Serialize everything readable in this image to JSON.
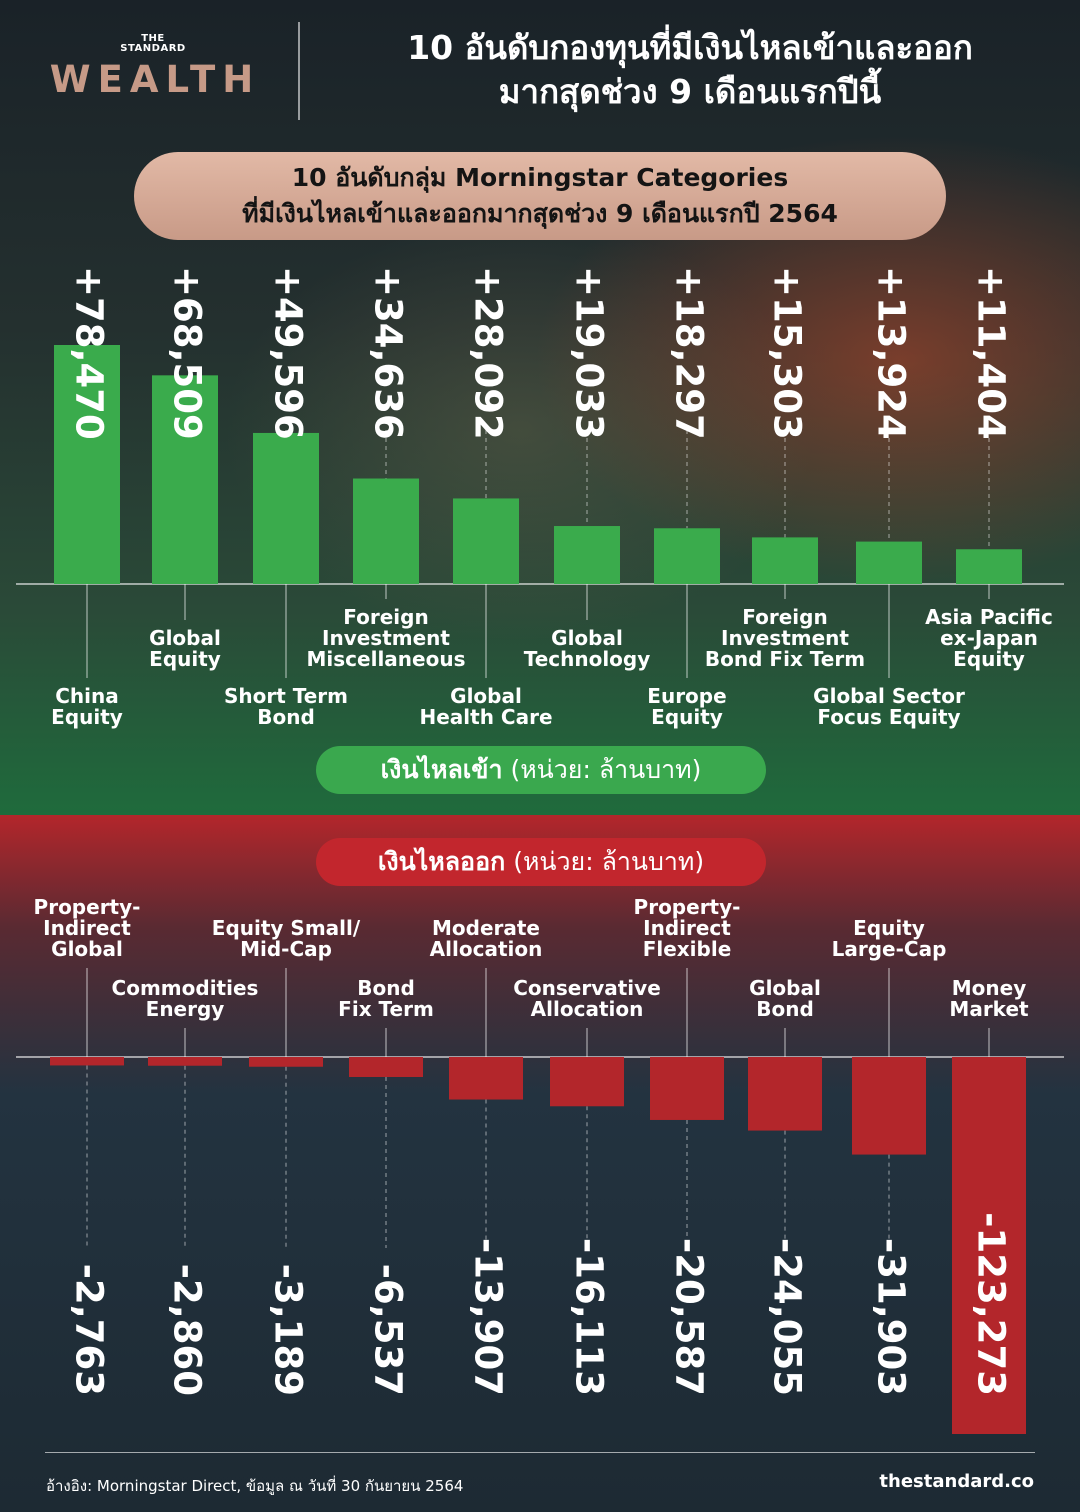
{
  "brand": {
    "small": "THE STANDARD",
    "big": "WEALTH"
  },
  "title": {
    "line1": "10 อันดับกองทุนที่มีเงินไหลเข้าและออก",
    "line2": "มากสุดช่วง 9 เดือนแรกปีนี้"
  },
  "subtitle": {
    "line1": "10 อันดับกลุ่ม Morningstar Categories",
    "line2": "ที่มีเงินไหลเข้าและออกมากสุดช่วง 9 เดือนแรกปี 2564"
  },
  "inflow_label": {
    "bold": "เงินไหลเข้า",
    "unit": "(หน่วย: ล้านบาท)"
  },
  "outflow_label": {
    "bold": "เงินไหลออก",
    "unit": "(หน่วย: ล้านบาท)"
  },
  "footer": {
    "source": "อ้างอิง: Morningstar Direct, ข้อมูล ณ วันที่ 30 กันยายน 2564",
    "site": "thestandard.co"
  },
  "colors": {
    "inflow_bar": "#3aab4c",
    "outflow_bar": "#b3262b",
    "banner": "#d6ab98",
    "brand": "#c69a87"
  },
  "chart_data": [
    {
      "type": "bar",
      "series": [
        {
          "name": "เงินไหลเข้า",
          "values": [
            78470,
            68509,
            49596,
            34636,
            28092,
            19033,
            18297,
            15303,
            13924,
            11404
          ]
        }
      ],
      "categories": [
        "China Equity",
        "Global Equity",
        "Short Term Bond",
        "Foreign Investment Miscellaneous",
        "Global Health Care",
        "Global Technology",
        "Europe Equity",
        "Foreign Investment Bond Fix Term",
        "Global Sector Focus Equity",
        "Asia Pacific ex-Japan Equity"
      ],
      "category_lines": [
        [
          "China",
          "Equity"
        ],
        [
          "Global",
          "Equity"
        ],
        [
          "Short Term",
          "Bond"
        ],
        [
          "Foreign",
          "Investment",
          "Miscellaneous"
        ],
        [
          "Global",
          "Health Care"
        ],
        [
          "Global",
          "Technology"
        ],
        [
          "Europe",
          "Equity"
        ],
        [
          "Foreign",
          "Investment",
          "Bond Fix Term"
        ],
        [
          "Global Sector",
          "Focus Equity"
        ],
        [
          "Asia Pacific",
          "ex-Japan",
          "Equity"
        ]
      ],
      "value_labels": [
        "+78,470",
        "+68,509",
        "+49,596",
        "+34,636",
        "+28,092",
        "+19,033",
        "+18,297",
        "+15,303",
        "+13,924",
        "+11,404"
      ],
      "ylabel": "(หน่วย: ล้านบาท)",
      "ylim": [
        0,
        78470
      ],
      "grid": false,
      "legend": "none"
    },
    {
      "type": "bar",
      "series": [
        {
          "name": "เงินไหลออก",
          "values": [
            -2763,
            -2860,
            -3189,
            -6537,
            -13907,
            -16113,
            -20587,
            -24055,
            -31903,
            -123273
          ]
        }
      ],
      "categories": [
        "Property-Indirect Global",
        "Commodities Energy",
        "Equity Small/Mid-Cap",
        "Bond Fix Term",
        "Moderate Allocation",
        "Conservative Allocation",
        "Property-Indirect Flexible",
        "Global Bond",
        "Equity Large-Cap",
        "Money Market"
      ],
      "category_lines": [
        [
          "Property-",
          "Indirect",
          "Global"
        ],
        [
          "Commodities",
          "Energy"
        ],
        [
          "Equity Small/",
          "Mid-Cap"
        ],
        [
          "Bond",
          "Fix Term"
        ],
        [
          "Moderate",
          "Allocation"
        ],
        [
          "Conservative",
          "Allocation"
        ],
        [
          "Property-",
          "Indirect",
          "Flexible"
        ],
        [
          "Global",
          "Bond"
        ],
        [
          "Equity",
          "Large-Cap"
        ],
        [
          "Money",
          "Market"
        ]
      ],
      "value_labels": [
        "-2,763",
        "-2,860",
        "-3,189",
        "-6,537",
        "-13,907",
        "-16,113",
        "-20,587",
        "-24,055",
        "-31,903",
        "-123,273"
      ],
      "ylabel": "(หน่วย: ล้านบาท)",
      "ylim": [
        -123273,
        0
      ],
      "grid": false,
      "legend": "none"
    }
  ]
}
